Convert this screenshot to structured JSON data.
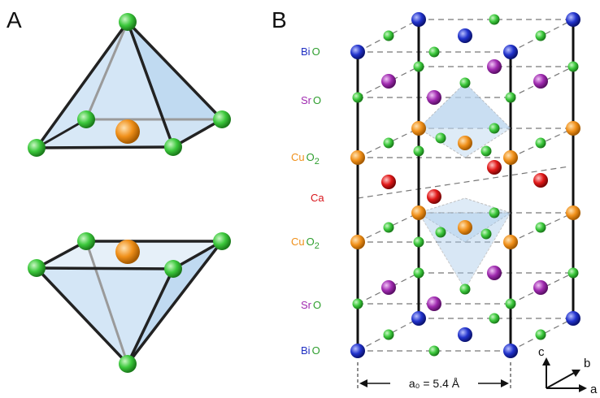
{
  "panels": {
    "a_label": "A",
    "b_label": "B"
  },
  "layer_labels": [
    {
      "element": "Bi",
      "oxygen": "O",
      "subscript": "",
      "color": "#1f2fc2"
    },
    {
      "element": "Sr",
      "oxygen": "O",
      "subscript": "",
      "color": "#a02bb0"
    },
    {
      "element": "Cu",
      "oxygen": "O",
      "subscript": "2",
      "color": "#f0901a"
    },
    {
      "element": "Ca",
      "oxygen": "",
      "subscript": "",
      "color": "#d8161c"
    },
    {
      "element": "Cu",
      "oxygen": "O",
      "subscript": "2",
      "color": "#f0901a"
    },
    {
      "element": "Sr",
      "oxygen": "O",
      "subscript": "",
      "color": "#a02bb0"
    },
    {
      "element": "Bi",
      "oxygen": "O",
      "subscript": "",
      "color": "#1f2fc2"
    }
  ],
  "oxygen_label_color": "#2e9e2e",
  "axes": {
    "c": "c",
    "b": "b",
    "a": "a"
  },
  "dimension": {
    "label": "a₀ = 5.4 Å"
  },
  "atom_colors": {
    "Bi": "#1f35c8",
    "Sr": "#9a2fb0",
    "Cu": "#f0901a",
    "Ca": "#e01818",
    "O": "#37c837"
  }
}
